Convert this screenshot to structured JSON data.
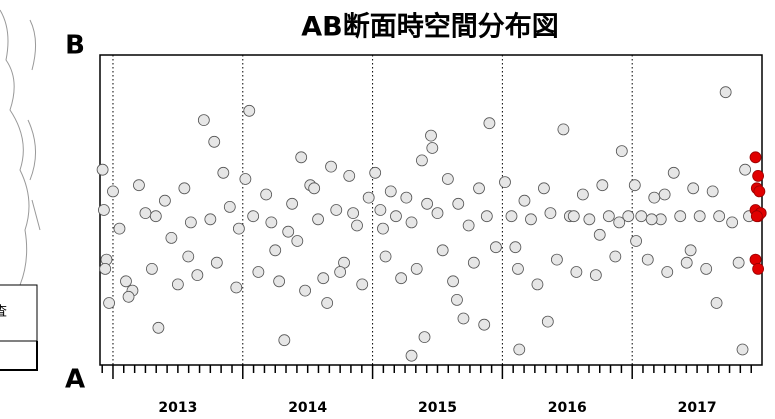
{
  "left_panel": {
    "label": "査"
  },
  "chart_data": {
    "type": "scatter",
    "title": "AB断面時空間分布図",
    "top_label": "B",
    "bottom_label": "A",
    "xlim": [
      2012.9,
      2018
    ],
    "ylim": [
      0,
      100
    ],
    "xticks": [
      {
        "value": 2013.5,
        "label": "2013"
      },
      {
        "value": 2014.5,
        "label": "2014"
      },
      {
        "value": 2015.5,
        "label": "2015"
      },
      {
        "value": 2016.5,
        "label": "2016"
      },
      {
        "value": 2017.5,
        "label": "2017"
      }
    ],
    "xgrid": [
      2013,
      2014,
      2015,
      2016,
      2017
    ],
    "xminor": [
      2012.917,
      2013.083,
      2013.167,
      2013.25,
      2013.333,
      2013.417,
      2013.5,
      2013.583,
      2013.667,
      2013.75,
      2013.833,
      2013.917,
      2014.083,
      2014.167,
      2014.25,
      2014.333,
      2014.417,
      2014.5,
      2014.583,
      2014.667,
      2014.75,
      2014.833,
      2014.917,
      2015.083,
      2015.167,
      2015.25,
      2015.333,
      2015.417,
      2015.5,
      2015.583,
      2015.667,
      2015.75,
      2015.833,
      2015.917,
      2016.083,
      2016.167,
      2016.25,
      2016.333,
      2016.417,
      2016.5,
      2016.583,
      2016.667,
      2016.75,
      2016.833,
      2016.917,
      2017.083,
      2017.167,
      2017.25,
      2017.333,
      2017.417,
      2017.5,
      2017.583,
      2017.667,
      2017.75,
      2017.833,
      2017.917
    ],
    "series": [
      {
        "color": "#e6e6e6",
        "x": [
          2012.92,
          2012.93,
          2012.95,
          2012.97,
          2013.0,
          2013.05,
          2013.1,
          2013.15,
          2013.2,
          2013.25,
          2013.3,
          2013.35,
          2013.4,
          2013.45,
          2013.5,
          2013.55,
          2013.6,
          2013.65,
          2013.7,
          2013.75,
          2013.8,
          2013.85,
          2013.9,
          2013.95,
          2013.97,
          2012.94,
          2013.12,
          2013.33,
          2013.58,
          2013.78,
          2014.02,
          2014.08,
          2014.12,
          2014.18,
          2014.22,
          2014.28,
          2014.32,
          2014.38,
          2014.42,
          2014.48,
          2014.52,
          2014.58,
          2014.62,
          2014.68,
          2014.72,
          2014.78,
          2014.82,
          2014.88,
          2014.92,
          2014.97,
          2014.05,
          2014.25,
          2014.45,
          2014.65,
          2014.85,
          2014.35,
          2014.55,
          2014.75,
          2015.02,
          2015.06,
          2015.1,
          2015.14,
          2015.18,
          2015.22,
          2015.26,
          2015.3,
          2015.34,
          2015.38,
          2015.42,
          2015.46,
          2015.5,
          2015.54,
          2015.58,
          2015.62,
          2015.66,
          2015.7,
          2015.74,
          2015.78,
          2015.82,
          2015.86,
          2015.9,
          2015.95,
          2015.08,
          2015.3,
          2015.45,
          2015.65,
          2015.88,
          2015.4,
          2016.02,
          2016.07,
          2016.12,
          2016.17,
          2016.22,
          2016.27,
          2016.32,
          2016.37,
          2016.42,
          2016.47,
          2016.52,
          2016.57,
          2016.62,
          2016.67,
          2016.72,
          2016.77,
          2016.82,
          2016.87,
          2016.92,
          2016.97,
          2016.1,
          2016.35,
          2016.55,
          2016.75,
          2016.9,
          2016.13,
          2017.02,
          2017.07,
          2017.12,
          2017.17,
          2017.22,
          2017.27,
          2017.32,
          2017.37,
          2017.42,
          2017.47,
          2017.52,
          2017.57,
          2017.62,
          2017.67,
          2017.72,
          2017.77,
          2017.82,
          2017.87,
          2017.9,
          2017.03,
          2017.25,
          2017.45,
          2017.65,
          2017.85,
          2017.15
        ],
        "values": [
          63,
          50,
          34,
          20,
          56,
          44,
          27,
          24,
          58,
          49,
          31,
          12,
          53,
          41,
          26,
          57,
          46,
          29,
          79,
          47,
          33,
          62,
          51,
          25,
          44,
          31,
          22,
          48,
          35,
          72,
          60,
          48,
          30,
          55,
          46,
          27,
          8,
          52,
          40,
          24,
          58,
          47,
          28,
          64,
          50,
          33,
          61,
          45,
          26,
          54,
          82,
          37,
          67,
          20,
          49,
          43,
          57,
          30,
          62,
          50,
          35,
          56,
          48,
          28,
          54,
          46,
          31,
          66,
          52,
          70,
          49,
          37,
          60,
          27,
          52,
          15,
          45,
          33,
          57,
          13,
          78,
          38,
          44,
          3,
          74,
          21,
          48,
          9,
          59,
          48,
          31,
          53,
          47,
          26,
          57,
          49,
          34,
          76,
          48,
          30,
          55,
          47,
          29,
          58,
          48,
          35,
          69,
          48,
          38,
          14,
          48,
          42,
          46,
          5,
          58,
          48,
          34,
          54,
          47,
          30,
          62,
          48,
          33,
          57,
          48,
          31,
          56,
          48,
          88,
          46,
          33,
          63,
          48,
          40,
          55,
          37,
          20,
          5,
          47
        ]
      },
      {
        "color": "#e00000",
        "x": [
          2017.95,
          2017.97,
          2017.96,
          2017.98,
          2017.95,
          2017.97,
          2017.99,
          2017.96,
          2017.95,
          2017.97
        ],
        "values": [
          67,
          61,
          57,
          56,
          50,
          48,
          49,
          48,
          34,
          31
        ]
      }
    ]
  }
}
